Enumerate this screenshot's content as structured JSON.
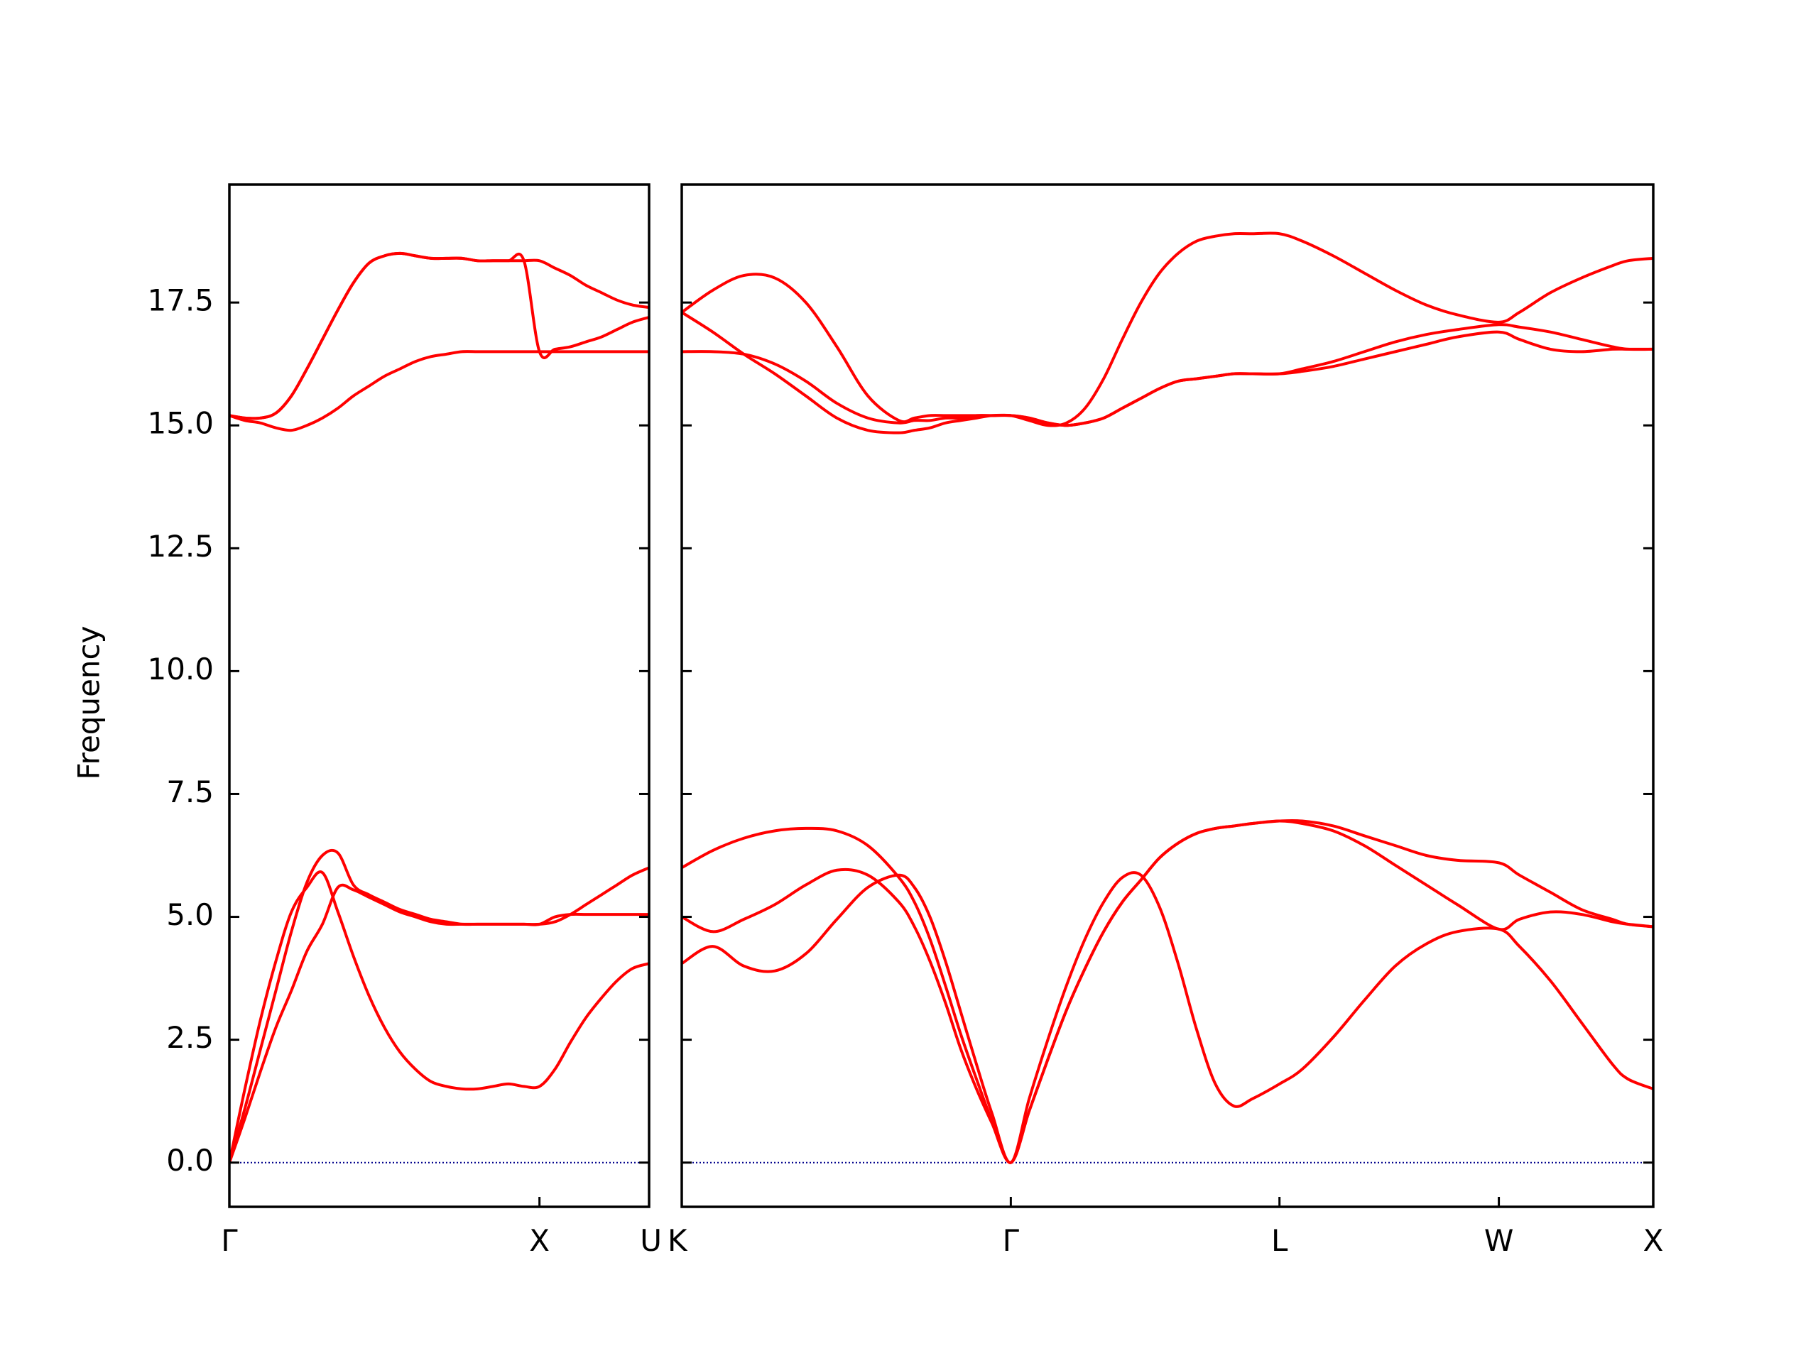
{
  "chart_data": {
    "type": "line",
    "title": "",
    "ylabel": "Frequency",
    "ylim": [
      -0.9,
      19.9
    ],
    "yticks": [
      "0.0",
      "2.5",
      "5.0",
      "7.5",
      "10.0",
      "12.5",
      "15.0",
      "17.5"
    ],
    "colors": {
      "bands": "#ff0000",
      "zero_line": "#00008b",
      "frame": "#000000"
    },
    "grid": false,
    "zero_line": true,
    "panels": [
      {
        "name": "left",
        "xlim": [
          0,
          1.3535
        ],
        "labels": [
          {
            "text": "Γ",
            "x": 0.0
          },
          {
            "text": "X",
            "x": 1.0
          },
          {
            "text": "U",
            "x": 1.3535
          }
        ],
        "bands": [
          {
            "name": "",
            "x": [
              0,
              0.05,
              0.1,
              0.15,
              0.2,
              0.25,
              0.3,
              0.35,
              0.4,
              0.45,
              0.5,
              0.55,
              0.6,
              0.65,
              0.7,
              0.75,
              0.8,
              0.85,
              0.9,
              0.95,
              1.0,
              1.05,
              1.1,
              1.15,
              1.2,
              1.25,
              1.3,
              1.3535
            ],
            "y": [
              0,
              1.5,
              2.9,
              4.1,
              5.1,
              5.6,
              5.9,
              5.1,
              4.2,
              3.4,
              2.75,
              2.25,
              1.9,
              1.65,
              1.55,
              1.5,
              1.5,
              1.55,
              1.6,
              1.55,
              1.55,
              1.9,
              2.45,
              2.95,
              3.35,
              3.7,
              3.95,
              4.05
            ]
          },
          {
            "name": "",
            "x": [
              0,
              0.05,
              0.1,
              0.15,
              0.2,
              0.25,
              0.3,
              0.35,
              0.4,
              0.45,
              0.5,
              0.55,
              0.6,
              0.65,
              0.7,
              0.75,
              0.8,
              0.85,
              0.9,
              0.95,
              1.0,
              1.05,
              1.1,
              1.15,
              1.2,
              1.25,
              1.3,
              1.3535
            ],
            "y": [
              0,
              0.9,
              1.85,
              2.75,
              3.5,
              4.3,
              4.85,
              5.6,
              5.55,
              5.4,
              5.25,
              5.1,
              5.0,
              4.9,
              4.85,
              4.85,
              4.85,
              4.85,
              4.85,
              4.85,
              4.85,
              5.0,
              5.05,
              5.05,
              5.05,
              5.05,
              5.05,
              5.05
            ]
          },
          {
            "name": "",
            "x": [
              0,
              0.05,
              0.1,
              0.15,
              0.2,
              0.25,
              0.3,
              0.35,
              0.4,
              0.45,
              0.5,
              0.55,
              0.6,
              0.65,
              0.7,
              0.75,
              0.8,
              0.85,
              0.9,
              0.95,
              1.0,
              1.05,
              1.1,
              1.15,
              1.2,
              1.25,
              1.3,
              1.3535
            ],
            "y": [
              0,
              1.1,
              2.3,
              3.5,
              4.7,
              5.7,
              6.25,
              6.3,
              5.65,
              5.45,
              5.3,
              5.15,
              5.05,
              4.95,
              4.9,
              4.85,
              4.85,
              4.85,
              4.85,
              4.85,
              4.85,
              4.9,
              5.05,
              5.25,
              5.45,
              5.65,
              5.85,
              6.0
            ]
          },
          {
            "name": "",
            "x": [
              0,
              0.05,
              0.1,
              0.15,
              0.2,
              0.25,
              0.3,
              0.35,
              0.4,
              0.45,
              0.5,
              0.55,
              0.6,
              0.65,
              0.7,
              0.75,
              0.8,
              0.85,
              0.9,
              0.95,
              1.0,
              1.05,
              1.1,
              1.15,
              1.2,
              1.25,
              1.3,
              1.3535
            ],
            "y": [
              15.2,
              15.1,
              15.05,
              14.95,
              14.9,
              15.0,
              15.15,
              15.35,
              15.6,
              15.8,
              16.0,
              16.15,
              16.3,
              16.4,
              16.45,
              16.5,
              16.5,
              16.5,
              16.5,
              16.5,
              16.5,
              16.5,
              16.5,
              16.5,
              16.5,
              16.5,
              16.5,
              16.5
            ]
          },
          {
            "name": "",
            "x": [
              0,
              0.05,
              0.1,
              0.15,
              0.2,
              0.25,
              0.3,
              0.35,
              0.4,
              0.45,
              0.5,
              0.55,
              0.6,
              0.65,
              0.7,
              0.75,
              0.8,
              0.85,
              0.9,
              0.95,
              1.0,
              1.05,
              1.1,
              1.15,
              1.2,
              1.25,
              1.3,
              1.3535
            ],
            "y": [
              15.2,
              15.15,
              15.15,
              15.25,
              15.6,
              16.15,
              16.75,
              17.35,
              17.9,
              18.3,
              18.45,
              18.5,
              18.45,
              18.4,
              18.4,
              18.4,
              18.35,
              18.35,
              18.35,
              18.35,
              18.35,
              18.2,
              18.05,
              17.85,
              17.7,
              17.55,
              17.45,
              17.4
            ]
          },
          {
            "name": "",
            "x": [
              0,
              0.05,
              0.1,
              0.15,
              0.2,
              0.25,
              0.3,
              0.35,
              0.4,
              0.45,
              0.5,
              0.55,
              0.6,
              0.65,
              0.7,
              0.75,
              0.8,
              0.85,
              0.9,
              0.95,
              1.0,
              1.05,
              1.1,
              1.15,
              1.2,
              1.25,
              1.3,
              1.3535
            ],
            "y": [
              15.2,
              15.15,
              15.15,
              15.25,
              15.6,
              16.15,
              16.75,
              17.35,
              17.9,
              18.3,
              18.45,
              18.5,
              18.45,
              18.4,
              18.4,
              18.4,
              18.35,
              18.35,
              18.35,
              18.35,
              16.5,
              16.55,
              16.6,
              16.7,
              16.8,
              16.95,
              17.1,
              17.2
            ]
          }
        ]
      },
      {
        "name": "right",
        "xlim": [
          0,
          3.1315
        ],
        "labels": [
          {
            "text": "K",
            "x": 0.0
          },
          {
            "text": "Γ",
            "x": 1.0607
          },
          {
            "text": "L",
            "x": 1.9267
          },
          {
            "text": "W",
            "x": 2.6338
          },
          {
            "text": "X",
            "x": 3.1315
          }
        ],
        "bands": [
          {
            "name": "",
            "x": [
              0,
              0.1,
              0.2,
              0.3,
              0.4,
              0.5,
              0.6,
              0.7,
              0.75,
              0.8,
              0.85,
              0.9,
              0.95,
              1.0,
              1.0607,
              1.12,
              1.18,
              1.24,
              1.3,
              1.36,
              1.42,
              1.48,
              1.54,
              1.6,
              1.66,
              1.72,
              1.78,
              1.84,
              1.9267,
              2.0,
              2.1,
              2.2,
              2.3,
              2.4,
              2.5,
              2.6338,
              2.7,
              2.8,
              2.9,
              3.0,
              3.05,
              3.1315
            ],
            "y": [
              4.05,
              4.4,
              4.0,
              3.9,
              4.25,
              4.95,
              5.6,
              5.85,
              5.6,
              5.0,
              4.1,
              3.05,
              2.0,
              1.0,
              0,
              1.3,
              2.5,
              3.6,
              4.55,
              5.3,
              5.8,
              5.85,
              5.2,
              4.05,
              2.7,
              1.6,
              1.15,
              1.3,
              1.6,
              1.9,
              2.55,
              3.3,
              4.0,
              4.45,
              4.7,
              4.75,
              4.4,
              3.7,
              2.85,
              2.0,
              1.7,
              1.5
            ]
          },
          {
            "name": "",
            "x": [
              0,
              0.1,
              0.2,
              0.3,
              0.4,
              0.5,
              0.6,
              0.7,
              0.75,
              0.8,
              0.85,
              0.9,
              0.95,
              1.0,
              1.0607,
              1.12,
              1.18,
              1.24,
              1.3,
              1.36,
              1.42,
              1.48,
              1.54,
              1.6,
              1.66,
              1.72,
              1.78,
              1.84,
              1.9267,
              2.0,
              2.1,
              2.2,
              2.3,
              2.4,
              2.5,
              2.6338,
              2.7,
              2.8,
              2.9,
              3.0,
              3.05,
              3.1315
            ],
            "y": [
              5.0,
              4.7,
              4.95,
              5.25,
              5.65,
              5.95,
              5.85,
              5.3,
              4.8,
              4.1,
              3.25,
              2.3,
              1.5,
              0.8,
              0,
              1.05,
              2.1,
              3.1,
              3.95,
              4.7,
              5.3,
              5.75,
              6.2,
              6.5,
              6.7,
              6.8,
              6.85,
              6.9,
              6.95,
              6.9,
              6.75,
              6.45,
              6.05,
              5.65,
              5.25,
              4.75,
              4.95,
              5.1,
              5.05,
              4.9,
              4.85,
              4.8
            ]
          },
          {
            "name": "",
            "x": [
              0,
              0.1,
              0.2,
              0.3,
              0.4,
              0.5,
              0.6,
              0.7,
              0.75,
              0.8,
              0.85,
              0.9,
              0.95,
              1.0,
              1.0607,
              1.12,
              1.18,
              1.24,
              1.3,
              1.36,
              1.42,
              1.48,
              1.54,
              1.6,
              1.66,
              1.72,
              1.78,
              1.84,
              1.9267,
              2.0,
              2.1,
              2.2,
              2.3,
              2.4,
              2.5,
              2.6338,
              2.7,
              2.8,
              2.9,
              3.0,
              3.05,
              3.1315
            ],
            "y": [
              6.0,
              6.35,
              6.6,
              6.75,
              6.8,
              6.75,
              6.45,
              5.8,
              5.3,
              4.55,
              3.6,
              2.6,
              1.7,
              0.85,
              0,
              1.05,
              2.1,
              3.1,
              3.95,
              4.7,
              5.3,
              5.75,
              6.2,
              6.5,
              6.7,
              6.8,
              6.85,
              6.9,
              6.95,
              6.95,
              6.85,
              6.65,
              6.45,
              6.25,
              6.15,
              6.1,
              5.85,
              5.5,
              5.15,
              4.95,
              4.85,
              4.8
            ]
          },
          {
            "name": "",
            "x": [
              0,
              0.1,
              0.2,
              0.3,
              0.4,
              0.5,
              0.6,
              0.7,
              0.75,
              0.8,
              0.85,
              0.9,
              0.95,
              1.0,
              1.0607,
              1.12,
              1.18,
              1.24,
              1.3,
              1.36,
              1.42,
              1.48,
              1.54,
              1.6,
              1.66,
              1.72,
              1.78,
              1.84,
              1.9267,
              2.0,
              2.1,
              2.2,
              2.3,
              2.4,
              2.5,
              2.6338,
              2.7,
              2.8,
              2.9,
              3.0,
              3.05,
              3.1315
            ],
            "y": [
              17.3,
              16.9,
              16.45,
              16.05,
              15.6,
              15.15,
              14.9,
              14.85,
              14.9,
              14.95,
              15.05,
              15.1,
              15.15,
              15.2,
              15.2,
              15.15,
              15.05,
              15.0,
              15.05,
              15.15,
              15.35,
              15.55,
              15.75,
              15.9,
              15.95,
              16.0,
              16.05,
              16.05,
              16.05,
              16.1,
              16.2,
              16.35,
              16.5,
              16.65,
              16.8,
              16.9,
              16.75,
              16.55,
              16.5,
              16.55,
              16.55,
              16.55
            ]
          },
          {
            "name": "",
            "x": [
              0,
              0.1,
              0.2,
              0.3,
              0.4,
              0.5,
              0.6,
              0.7,
              0.75,
              0.8,
              0.85,
              0.9,
              0.95,
              1.0,
              1.0607,
              1.12,
              1.18,
              1.24,
              1.3,
              1.36,
              1.42,
              1.48,
              1.54,
              1.6,
              1.66,
              1.72,
              1.78,
              1.84,
              1.9267,
              2.0,
              2.1,
              2.2,
              2.3,
              2.4,
              2.5,
              2.6338,
              2.7,
              2.8,
              2.9,
              3.0,
              3.05,
              3.1315
            ],
            "y": [
              16.5,
              16.5,
              16.45,
              16.25,
              15.9,
              15.45,
              15.15,
              15.05,
              15.1,
              15.1,
              15.15,
              15.15,
              15.2,
              15.2,
              15.2,
              15.15,
              15.05,
              15.0,
              15.05,
              15.15,
              15.35,
              15.55,
              15.75,
              15.9,
              15.95,
              16.0,
              16.05,
              16.05,
              16.05,
              16.15,
              16.3,
              16.5,
              16.7,
              16.85,
              16.95,
              17.05,
              17.0,
              16.9,
              16.75,
              16.6,
              16.55,
              16.55
            ]
          },
          {
            "name": "",
            "x": [
              0,
              0.1,
              0.2,
              0.3,
              0.4,
              0.5,
              0.6,
              0.7,
              0.75,
              0.8,
              0.85,
              0.9,
              0.95,
              1.0,
              1.0607,
              1.12,
              1.18,
              1.24,
              1.3,
              1.36,
              1.42,
              1.48,
              1.54,
              1.6,
              1.66,
              1.72,
              1.78,
              1.84,
              1.9267,
              2.0,
              2.1,
              2.2,
              2.3,
              2.4,
              2.5,
              2.6338,
              2.7,
              2.8,
              2.9,
              3.0,
              3.05,
              3.1315
            ],
            "y": [
              17.3,
              17.75,
              18.05,
              18.0,
              17.5,
              16.6,
              15.6,
              15.1,
              15.15,
              15.2,
              15.2,
              15.2,
              15.2,
              15.2,
              15.2,
              15.1,
              15.0,
              15.05,
              15.35,
              15.95,
              16.75,
              17.5,
              18.1,
              18.5,
              18.75,
              18.85,
              18.9,
              18.9,
              18.9,
              18.75,
              18.45,
              18.1,
              17.75,
              17.45,
              17.25,
              17.1,
              17.3,
              17.7,
              18.0,
              18.25,
              18.35,
              18.4
            ]
          }
        ]
      }
    ]
  }
}
